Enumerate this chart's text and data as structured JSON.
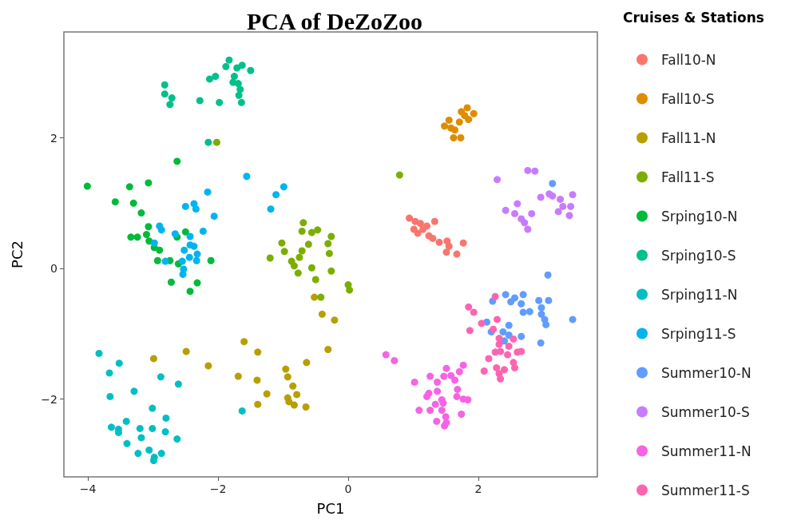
{
  "chart_data": {
    "type": "scatter",
    "title": "PCA of DeZoZoo",
    "xlabel": "PC1",
    "ylabel": "PC2",
    "legend_title": "Cruises & Stations",
    "legend": "right",
    "marker": "circle",
    "xlim": [
      -4.37,
      3.83
    ],
    "ylim": [
      -3.19,
      3.62
    ],
    "xticks": [
      -4,
      -2,
      0,
      2
    ],
    "yticks": [
      -2,
      0,
      2
    ],
    "series": [
      {
        "name": "Fall10-N",
        "color": "#f8766d",
        "x": [
          0.94,
          1.03,
          1.11,
          1.01,
          1.07,
          1.21,
          1.33,
          1.24,
          1.3,
          1.4,
          1.52,
          1.55,
          1.51,
          1.67,
          1.77,
          1.15
        ],
        "values": [
          0.77,
          0.72,
          0.69,
          0.6,
          0.54,
          0.65,
          0.72,
          0.5,
          0.46,
          0.4,
          0.42,
          0.34,
          0.25,
          0.22,
          0.39,
          0.6
        ]
      },
      {
        "name": "Fall10-S",
        "color": "#de8c00",
        "x": [
          1.55,
          1.48,
          1.64,
          1.62,
          1.73,
          1.83,
          1.74,
          1.93,
          1.85,
          1.71,
          1.58,
          1.79
        ],
        "values": [
          2.27,
          2.18,
          2.12,
          2.0,
          2.0,
          2.46,
          2.4,
          2.37,
          2.28,
          2.24,
          2.15,
          2.34
        ]
      },
      {
        "name": "Fall11-N",
        "color": "#b79f00",
        "x": [
          -0.52,
          -0.4,
          -0.21,
          -0.31,
          -0.64,
          -1.6,
          -1.39,
          -0.96,
          -0.93,
          -0.85,
          -0.79,
          -0.93,
          -0.91,
          -0.83,
          -0.65,
          -1.69,
          -1.4,
          -1.25,
          -1.39,
          -2.15,
          -2.49,
          -2.99
        ],
        "values": [
          -0.44,
          -0.7,
          -0.79,
          -1.24,
          -1.44,
          -1.12,
          -1.28,
          -1.54,
          -1.66,
          -1.8,
          -1.93,
          -1.98,
          -2.04,
          -2.09,
          -2.12,
          -1.65,
          -1.71,
          -1.92,
          -2.08,
          -1.49,
          -1.27,
          -1.38
        ]
      },
      {
        "name": "Fall11-S",
        "color": "#7cae00",
        "x": [
          -0.69,
          -0.71,
          -0.56,
          -0.47,
          -0.26,
          -1.02,
          -0.61,
          -0.31,
          -0.98,
          -0.71,
          -0.75,
          -1.2,
          -0.87,
          -0.29,
          -0.56,
          -0.83,
          -0.77,
          -0.26,
          -0.5,
          0.0,
          0.02,
          -0.42,
          0.79,
          -2.02
        ],
        "values": [
          0.7,
          0.57,
          0.55,
          0.59,
          0.49,
          0.39,
          0.37,
          0.38,
          0.26,
          0.27,
          0.17,
          0.16,
          0.11,
          0.23,
          0.01,
          0.04,
          -0.07,
          -0.04,
          -0.17,
          -0.25,
          -0.33,
          -0.44,
          1.43,
          1.93
        ]
      },
      {
        "name": "Srping10-N",
        "color": "#00ba38",
        "x": [
          -2.63,
          -4.01,
          -3.36,
          -3.07,
          -3.58,
          -3.3,
          -3.18,
          -3.07,
          -3.34,
          -3.24,
          -3.1,
          -3.06,
          -2.98,
          -2.9,
          -2.5,
          -2.63,
          -2.93,
          -2.74,
          -2.61,
          -2.11,
          -2.72,
          -2.32,
          -2.43
        ],
        "values": [
          1.64,
          1.26,
          1.25,
          1.31,
          1.02,
          1.0,
          0.85,
          0.64,
          0.48,
          0.48,
          0.52,
          0.42,
          0.32,
          0.28,
          0.56,
          0.48,
          0.12,
          0.12,
          0.07,
          0.12,
          -0.21,
          -0.22,
          -0.35
        ]
      },
      {
        "name": "Srping10-S",
        "color": "#00c08b",
        "x": [
          -1.83,
          -1.88,
          -1.71,
          -1.63,
          -1.5,
          -1.75,
          -1.77,
          -1.69,
          -1.66,
          -1.68,
          -1.64,
          -2.13,
          -2.04,
          -1.98,
          -2.28,
          -2.82,
          -2.82,
          -2.71,
          -2.74,
          -2.15
        ],
        "values": [
          3.19,
          3.09,
          3.07,
          3.11,
          3.03,
          2.94,
          2.85,
          2.83,
          2.74,
          2.65,
          2.54,
          2.9,
          2.94,
          2.54,
          2.57,
          2.81,
          2.67,
          2.61,
          2.51,
          1.93
        ]
      },
      {
        "name": "Srping11-N",
        "color": "#00bfc4",
        "x": [
          -3.83,
          -3.52,
          -3.67,
          -2.88,
          -2.61,
          -3.66,
          -3.29,
          -3.01,
          -2.8,
          -3.41,
          -3.64,
          -3.53,
          -3.53,
          -3.2,
          -3.01,
          -2.81,
          -3.18,
          -2.63,
          -3.4,
          -3.23,
          -3.06,
          -2.87,
          -2.98,
          -2.99,
          -1.63
        ],
        "values": [
          -1.3,
          -1.45,
          -1.6,
          -1.66,
          -1.77,
          -1.96,
          -1.88,
          -2.14,
          -2.29,
          -2.34,
          -2.43,
          -2.46,
          -2.51,
          -2.45,
          -2.45,
          -2.5,
          -2.59,
          -2.61,
          -2.68,
          -2.83,
          -2.78,
          -2.83,
          -2.89,
          -2.94,
          -2.18
        ]
      },
      {
        "name": "Srping11-S",
        "color": "#00b4f0",
        "x": [
          -1.56,
          -0.99,
          -1.11,
          -1.19,
          -2.16,
          -2.5,
          -2.37,
          -2.34,
          -2.06,
          -2.9,
          -2.87,
          -2.23,
          -2.66,
          -2.43,
          -2.43,
          -2.37,
          -2.98,
          -2.52,
          -2.32,
          -2.44,
          -2.33,
          -2.55,
          -2.81,
          -2.53,
          -2.54
        ],
        "values": [
          1.41,
          1.25,
          1.13,
          0.91,
          1.17,
          0.95,
          0.99,
          0.91,
          0.8,
          0.65,
          0.59,
          0.57,
          0.53,
          0.49,
          0.36,
          0.34,
          0.39,
          0.28,
          0.22,
          0.17,
          0.12,
          0.11,
          0.11,
          -0.01,
          -0.09
        ]
      },
      {
        "name": "Summer10-N",
        "color": "#619cff",
        "x": [
          3.07,
          2.42,
          2.69,
          2.22,
          2.5,
          2.56,
          2.66,
          2.93,
          3.08,
          2.97,
          2.69,
          2.79,
          2.97,
          3.02,
          3.04,
          3.45,
          2.13,
          2.2,
          2.38,
          2.47,
          2.47,
          2.66,
          2.96,
          2.4,
          3.14
        ],
        "values": [
          -0.1,
          -0.4,
          -0.4,
          -0.5,
          -0.51,
          -0.45,
          -0.54,
          -0.49,
          -0.49,
          -0.6,
          -0.67,
          -0.66,
          -0.7,
          -0.78,
          -0.86,
          -0.78,
          -0.82,
          -0.97,
          -0.97,
          -0.87,
          -1.02,
          -1.04,
          -1.14,
          -1.11,
          1.3
        ]
      },
      {
        "name": "Summer10-S",
        "color": "#c77cff",
        "x": [
          2.29,
          2.76,
          2.87,
          2.96,
          3.09,
          3.14,
          3.26,
          3.45,
          3.42,
          3.3,
          3.23,
          3.4,
          2.42,
          2.56,
          2.6,
          2.82,
          2.66,
          2.71,
          2.76
        ],
        "values": [
          1.36,
          1.5,
          1.49,
          1.09,
          1.14,
          1.11,
          1.06,
          1.13,
          0.95,
          0.95,
          0.87,
          0.81,
          0.89,
          0.84,
          0.99,
          0.84,
          0.76,
          0.7,
          0.6
        ]
      },
      {
        "name": "Summer11-N",
        "color": "#f564e3",
        "x": [
          0.58,
          0.71,
          1.02,
          1.26,
          1.51,
          1.77,
          1.71,
          1.47,
          1.58,
          1.64,
          1.37,
          1.37,
          1.24,
          1.21,
          1.68,
          1.67,
          1.77,
          1.84,
          1.44,
          1.34,
          1.46,
          1.09,
          1.26,
          1.44,
          1.5,
          1.74,
          1.36,
          1.48,
          1.51
        ],
        "values": [
          -1.32,
          -1.41,
          -1.74,
          -1.65,
          -1.53,
          -1.48,
          -1.58,
          -1.65,
          -1.64,
          -1.71,
          -1.74,
          -1.88,
          -1.91,
          -1.96,
          -1.85,
          -1.96,
          -2.0,
          -2.01,
          -2.01,
          -2.08,
          -2.06,
          -2.17,
          -2.17,
          -2.17,
          -2.27,
          -2.23,
          -2.34,
          -2.41,
          -2.36
        ]
      },
      {
        "name": "Summer11-S",
        "color": "#ff64b0",
        "x": [
          2.26,
          1.85,
          1.93,
          2.05,
          2.29,
          2.23,
          1.87,
          2.32,
          2.32,
          2.54,
          2.47,
          2.26,
          2.34,
          2.45,
          2.6,
          2.66,
          2.16,
          2.54,
          2.56,
          2.28,
          2.4,
          2.09,
          2.32,
          2.34
        ],
        "values": [
          -0.43,
          -0.59,
          -0.67,
          -0.84,
          -0.78,
          -0.93,
          -0.95,
          -1.07,
          -1.16,
          -1.08,
          -1.19,
          -1.28,
          -1.27,
          -1.32,
          -1.28,
          -1.27,
          -1.38,
          -1.44,
          -1.52,
          -1.52,
          -1.55,
          -1.57,
          -1.61,
          -1.69
        ]
      }
    ]
  }
}
